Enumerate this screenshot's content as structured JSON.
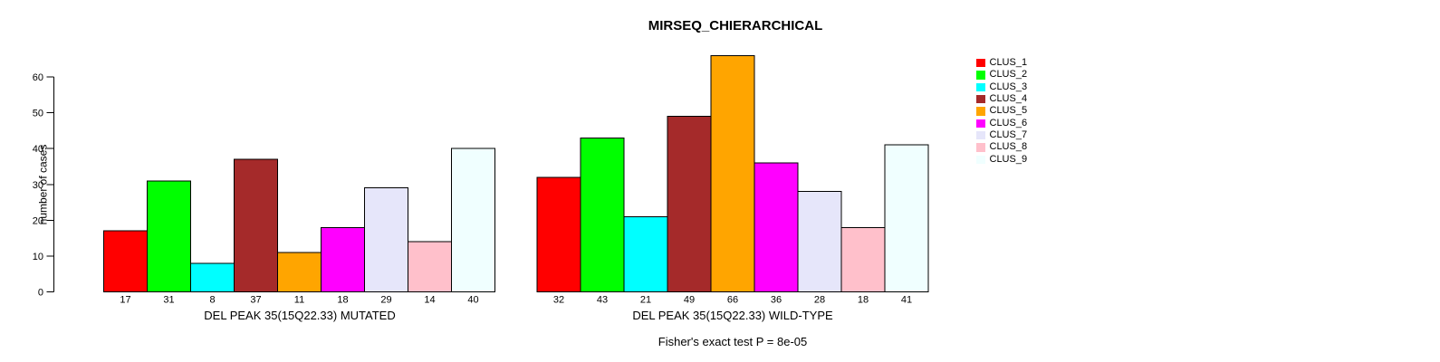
{
  "title": "MIRSEQ_CHIERARCHICAL",
  "background_color": "#FFFFFF",
  "chart_data": {
    "type": "bar",
    "title": "MIRSEQ_CHIERARCHICAL",
    "ylabel": "number of cases",
    "ylim": [
      0,
      60
    ],
    "yticks": [
      0,
      10,
      20,
      30,
      40,
      50,
      60
    ],
    "grid": false,
    "legend_position": "right",
    "bar_outline_color": "#000000",
    "clusters": [
      "CLUS_1",
      "CLUS_2",
      "CLUS_3",
      "CLUS_4",
      "CLUS_5",
      "CLUS_6",
      "CLUS_7",
      "CLUS_8",
      "CLUS_9"
    ],
    "cluster_colors": [
      "#FF0000",
      "#00FF00",
      "#00FFFF",
      "#A52A2A",
      "#FFA500",
      "#FF00FF",
      "#E6E6FA",
      "#FFC0CB",
      "#F0FFFF"
    ],
    "groups": [
      {
        "label": "DEL PEAK 35(15Q22.33) MUTATED",
        "values": [
          17,
          31,
          8,
          37,
          11,
          18,
          29,
          14,
          40
        ]
      },
      {
        "label": "DEL PEAK 35(15Q22.33) WILD-TYPE",
        "values": [
          32,
          43,
          21,
          49,
          66,
          36,
          28,
          18,
          41
        ]
      }
    ],
    "footnote": "Fisher's exact test P = 8e-05"
  }
}
